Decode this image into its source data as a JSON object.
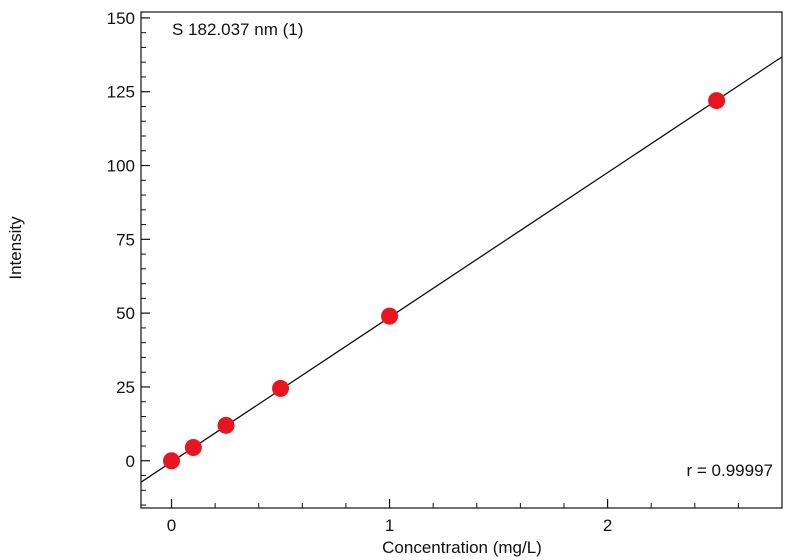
{
  "chart_data": {
    "type": "scatter",
    "title": "",
    "annotations": {
      "top_left": "S 182.037 nm (1)",
      "bottom_right": "r = 0.99997"
    },
    "xlabel": "Concentration (mg/L)",
    "ylabel": "Intensity",
    "xlim": [
      -0.14,
      2.8
    ],
    "ylim": [
      -16,
      152
    ],
    "x_ticks": [
      0,
      1,
      2
    ],
    "y_ticks": [
      0,
      25,
      50,
      75,
      100,
      125,
      150
    ],
    "grid": false,
    "series": [
      {
        "points": [
          {
            "x": 0,
            "y": 0
          },
          {
            "x": 0.1,
            "y": 4.5
          },
          {
            "x": 0.25,
            "y": 12
          },
          {
            "x": 0.5,
            "y": 24.5
          },
          {
            "x": 1,
            "y": 49
          },
          {
            "x": 2.5,
            "y": 122
          }
        ],
        "color": "#e8141e"
      }
    ],
    "fit_line": {
      "slope": 49.0,
      "intercept": -0.4,
      "color": "#111111"
    }
  }
}
